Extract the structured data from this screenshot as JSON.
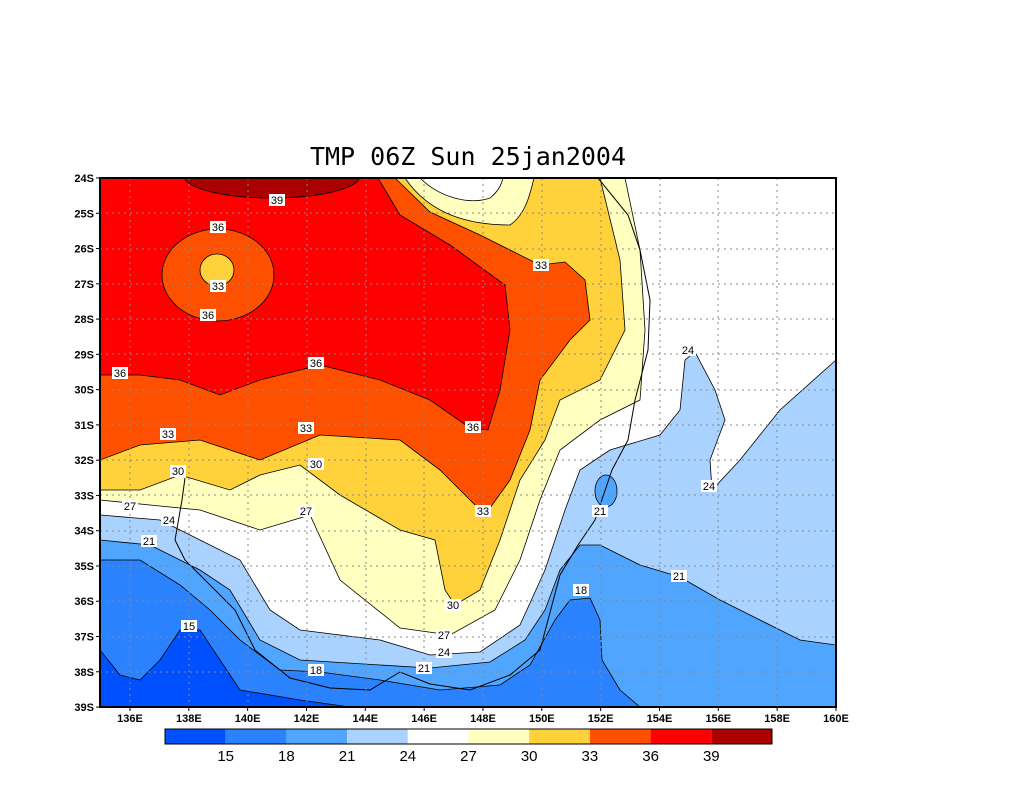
{
  "title": "TMP 06Z Sun 25jan2004",
  "lat_labels": [
    "24S",
    "25S",
    "26S",
    "27S",
    "28S",
    "29S",
    "30S",
    "31S",
    "32S",
    "33S",
    "34S",
    "35S",
    "36S",
    "37S",
    "38S",
    "39S"
  ],
  "lon_labels": [
    "136E",
    "138E",
    "140E",
    "142E",
    "144E",
    "146E",
    "148E",
    "150E",
    "152E",
    "154E",
    "156E",
    "158E",
    "160E"
  ],
  "legend": {
    "labels": [
      "15",
      "18",
      "21",
      "24",
      "27",
      "30",
      "33",
      "36",
      "39"
    ],
    "colors": [
      "#0050ff",
      "#2a82ff",
      "#50a5ff",
      "#aad2ff",
      "#ffffff",
      "#ffffc0",
      "#ffd23c",
      "#ff5000",
      "#ff0000",
      "#aa0000"
    ]
  },
  "contour_labels": [
    "39",
    "36",
    "33",
    "36",
    "36",
    "36",
    "33",
    "33",
    "36",
    "33",
    "30",
    "30",
    "27",
    "27",
    "24",
    "21",
    "33",
    "24",
    "24",
    "21",
    "21",
    "18",
    "30",
    "27",
    "24",
    "21",
    "18",
    "15"
  ]
}
